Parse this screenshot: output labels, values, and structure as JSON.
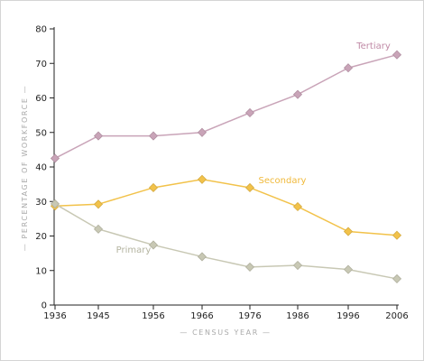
{
  "chart_data": {
    "type": "line",
    "title": "",
    "xlabel": "— CENSUS YEAR —",
    "ylabel": "— PERCENTAGE OF WORKFORCE —",
    "x": [
      1936,
      1945,
      1956,
      1966,
      1976,
      1986,
      1996,
      2006
    ],
    "x_tick_labels": [
      "1936",
      "1945",
      "1956",
      "1966",
      "1976",
      "1986",
      "1996",
      "2006"
    ],
    "ylim": [
      0,
      80
    ],
    "y_ticks": [
      0,
      10,
      20,
      30,
      40,
      50,
      60,
      70,
      80
    ],
    "grid": false,
    "series": [
      {
        "name": "Tertiary",
        "color": "#c9a4b8",
        "label_color": "#c08aa6",
        "values": [
          42.5,
          49,
          49,
          50,
          55.7,
          61,
          68.7,
          72.5
        ]
      },
      {
        "name": "Secondary",
        "color": "#f2c24a",
        "label_color": "#f0b93a",
        "values": [
          28.7,
          29.2,
          34,
          36.4,
          34,
          28.5,
          21.3,
          20.2
        ]
      },
      {
        "name": "Primary",
        "color": "#c8c8b4",
        "label_color": "#b4b4a0",
        "values": [
          29.3,
          22,
          17.4,
          14,
          11,
          11.5,
          10.3,
          7.6
        ]
      }
    ]
  }
}
